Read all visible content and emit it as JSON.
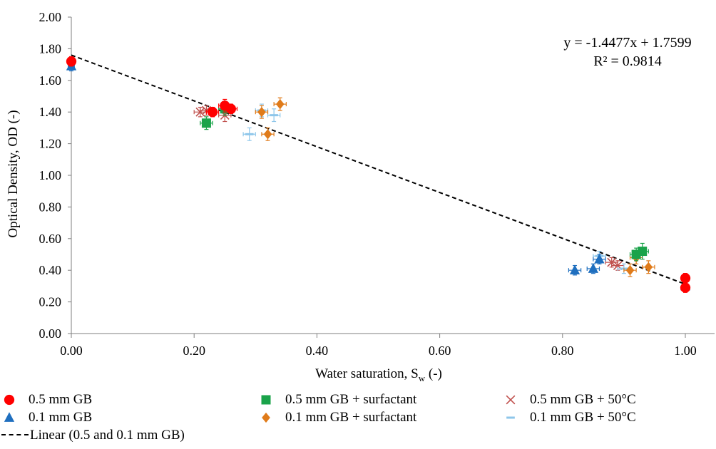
{
  "chart_data": {
    "type": "scatter",
    "xlabel_main": "Water saturation, S",
    "xlabel_sub": "w",
    "xlabel_tail": " (-)",
    "ylabel": "Optical Density, OD (-)",
    "xlim": [
      0,
      1.0
    ],
    "ylim": [
      0,
      2.0
    ],
    "x_ticks": [
      "0.00",
      "0.20",
      "0.40",
      "0.60",
      "0.80",
      "1.00"
    ],
    "y_ticks": [
      "0.00",
      "0.20",
      "0.40",
      "0.60",
      "0.80",
      "1.00",
      "1.20",
      "1.40",
      "1.60",
      "1.80",
      "2.00"
    ],
    "grid": false,
    "equation": "y = -1.4477x + 1.7599",
    "r_squared": "R² = 0.9814",
    "trendline": {
      "name": "Linear (0.5 and 0.1 mm GB)",
      "slope": -1.4477,
      "intercept": 1.7599,
      "color": "#000000",
      "style": "dashed"
    },
    "series": [
      {
        "name": "0.5 mm GB",
        "marker": "circle",
        "color": "#ff0000",
        "points": [
          {
            "x": 0.0,
            "y": 1.72,
            "xerr": 0.005,
            "yerr": 0.03
          },
          {
            "x": 0.23,
            "y": 1.4,
            "xerr": 0.01,
            "yerr": 0.03
          },
          {
            "x": 0.25,
            "y": 1.44,
            "xerr": 0.01,
            "yerr": 0.04
          },
          {
            "x": 0.26,
            "y": 1.42,
            "xerr": 0.01,
            "yerr": 0.03
          },
          {
            "x": 1.0,
            "y": 0.35,
            "xerr": 0.005,
            "yerr": 0.03
          },
          {
            "x": 1.0,
            "y": 0.29,
            "xerr": 0.005,
            "yerr": 0.03
          }
        ]
      },
      {
        "name": "0.1 mm GB",
        "marker": "triangle",
        "color": "#1f6fbf",
        "points": [
          {
            "x": 0.0,
            "y": 1.69,
            "xerr": 0.005,
            "yerr": 0.03
          },
          {
            "x": 0.82,
            "y": 0.4,
            "xerr": 0.01,
            "yerr": 0.03
          },
          {
            "x": 0.85,
            "y": 0.41,
            "xerr": 0.01,
            "yerr": 0.03
          },
          {
            "x": 0.86,
            "y": 0.47,
            "xerr": 0.01,
            "yerr": 0.03
          },
          {
            "x": 1.0,
            "y": 0.3,
            "xerr": 0.005,
            "yerr": 0.03
          }
        ]
      },
      {
        "name": "0.5 mm GB + surfactant",
        "marker": "square",
        "color": "#1aa34a",
        "points": [
          {
            "x": 0.22,
            "y": 1.33,
            "xerr": 0.01,
            "yerr": 0.04
          },
          {
            "x": 0.25,
            "y": 1.42,
            "xerr": 0.01,
            "yerr": 0.04
          },
          {
            "x": 0.92,
            "y": 0.5,
            "xerr": 0.01,
            "yerr": 0.04
          },
          {
            "x": 0.93,
            "y": 0.52,
            "xerr": 0.01,
            "yerr": 0.05
          }
        ]
      },
      {
        "name": "0.1 mm GB + surfactant",
        "marker": "diamond",
        "color": "#e07b1a",
        "points": [
          {
            "x": 0.31,
            "y": 1.4,
            "xerr": 0.01,
            "yerr": 0.04
          },
          {
            "x": 0.32,
            "y": 1.26,
            "xerr": 0.01,
            "yerr": 0.04
          },
          {
            "x": 0.34,
            "y": 1.45,
            "xerr": 0.01,
            "yerr": 0.04
          },
          {
            "x": 0.91,
            "y": 0.4,
            "xerr": 0.01,
            "yerr": 0.04
          },
          {
            "x": 0.92,
            "y": 0.48,
            "xerr": 0.01,
            "yerr": 0.04
          },
          {
            "x": 0.94,
            "y": 0.42,
            "xerr": 0.01,
            "yerr": 0.04
          }
        ]
      },
      {
        "name": "0.5 mm GB + 50°C",
        "marker": "x",
        "color": "#c0504d",
        "points": [
          {
            "x": 0.21,
            "y": 1.4,
            "xerr": 0.01,
            "yerr": 0.03
          },
          {
            "x": 0.22,
            "y": 1.41,
            "xerr": 0.01,
            "yerr": 0.03
          },
          {
            "x": 0.25,
            "y": 1.38,
            "xerr": 0.01,
            "yerr": 0.04
          },
          {
            "x": 0.88,
            "y": 0.45,
            "xerr": 0.01,
            "yerr": 0.03
          },
          {
            "x": 0.89,
            "y": 0.43,
            "xerr": 0.01,
            "yerr": 0.03
          }
        ]
      },
      {
        "name": "0.1 mm GB + 50°C",
        "marker": "dash",
        "color": "#8ec6ea",
        "points": [
          {
            "x": 0.29,
            "y": 1.26,
            "xerr": 0.01,
            "yerr": 0.04
          },
          {
            "x": 0.31,
            "y": 1.41,
            "xerr": 0.01,
            "yerr": 0.04
          },
          {
            "x": 0.33,
            "y": 1.38,
            "xerr": 0.01,
            "yerr": 0.04
          },
          {
            "x": 0.86,
            "y": 0.49,
            "xerr": 0.01,
            "yerr": 0.03
          },
          {
            "x": 0.9,
            "y": 0.41,
            "xerr": 0.01,
            "yerr": 0.03
          }
        ]
      }
    ]
  },
  "legend": {
    "items": [
      {
        "label": "0.5 mm GB",
        "marker": "circle",
        "color": "#ff0000"
      },
      {
        "label": "0.5 mm GB + surfactant",
        "marker": "square",
        "color": "#1aa34a"
      },
      {
        "label": "0.5 mm GB + 50°C",
        "marker": "x",
        "color": "#c0504d"
      },
      {
        "label": "0.1 mm GB",
        "marker": "triangle",
        "color": "#1f6fbf"
      },
      {
        "label": "0.1 mm GB + surfactant",
        "marker": "diamond",
        "color": "#e07b1a"
      },
      {
        "label": "0.1 mm GB + 50°C",
        "marker": "dash",
        "color": "#8ec6ea"
      }
    ],
    "trend_label": "Linear (0.5 and 0.1 mm GB)"
  }
}
